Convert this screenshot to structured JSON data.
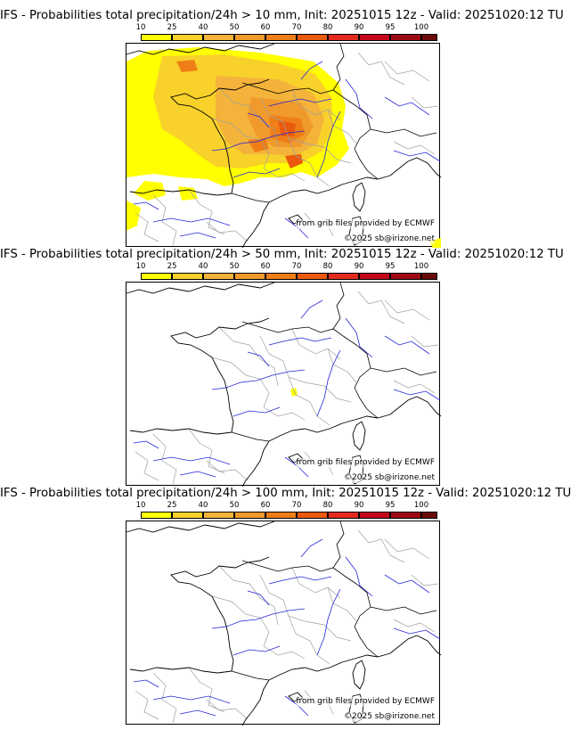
{
  "colors": {
    "bins": [
      "#ffff00",
      "#f8d12a",
      "#f4b33a",
      "#f19a2c",
      "#ef7e17",
      "#ec5a0d",
      "#e42a1e",
      "#c4071b",
      "#9e0a14",
      "#6b0a0a"
    ],
    "coast": "#000000",
    "borders": "#000000",
    "regions": "#a0a0a0",
    "rivers": "#2424d8"
  },
  "colorbar": {
    "ticks": [
      "10",
      "25",
      "40",
      "50",
      "60",
      "70",
      "80",
      "90",
      "95",
      "100"
    ]
  },
  "panels": [
    {
      "title": "IFS - Probabilities total precipitation/24h > 10 mm, Init: 20251015 12z - Valid: 20251020:12 TU",
      "source": "from grib files provided by ECMWF",
      "copyright": "©2025 sb@irizone.net",
      "precip_field": "widespread"
    },
    {
      "title": "IFS - Probabilities total precipitation/24h > 50 mm, Init: 20251015 12z - Valid: 20251020:12 TU",
      "source": "from grib files provided by ECMWF",
      "copyright": "©2025 sb@irizone.net",
      "precip_field": "isolated"
    },
    {
      "title": "IFS - Probabilities total precipitation/24h > 100 mm, Init: 20251015 12z - Valid: 20251020:12 TU",
      "source": "from grib files provided by ECMWF",
      "copyright": "©2025 sb@irizone.net",
      "precip_field": "none"
    }
  ]
}
